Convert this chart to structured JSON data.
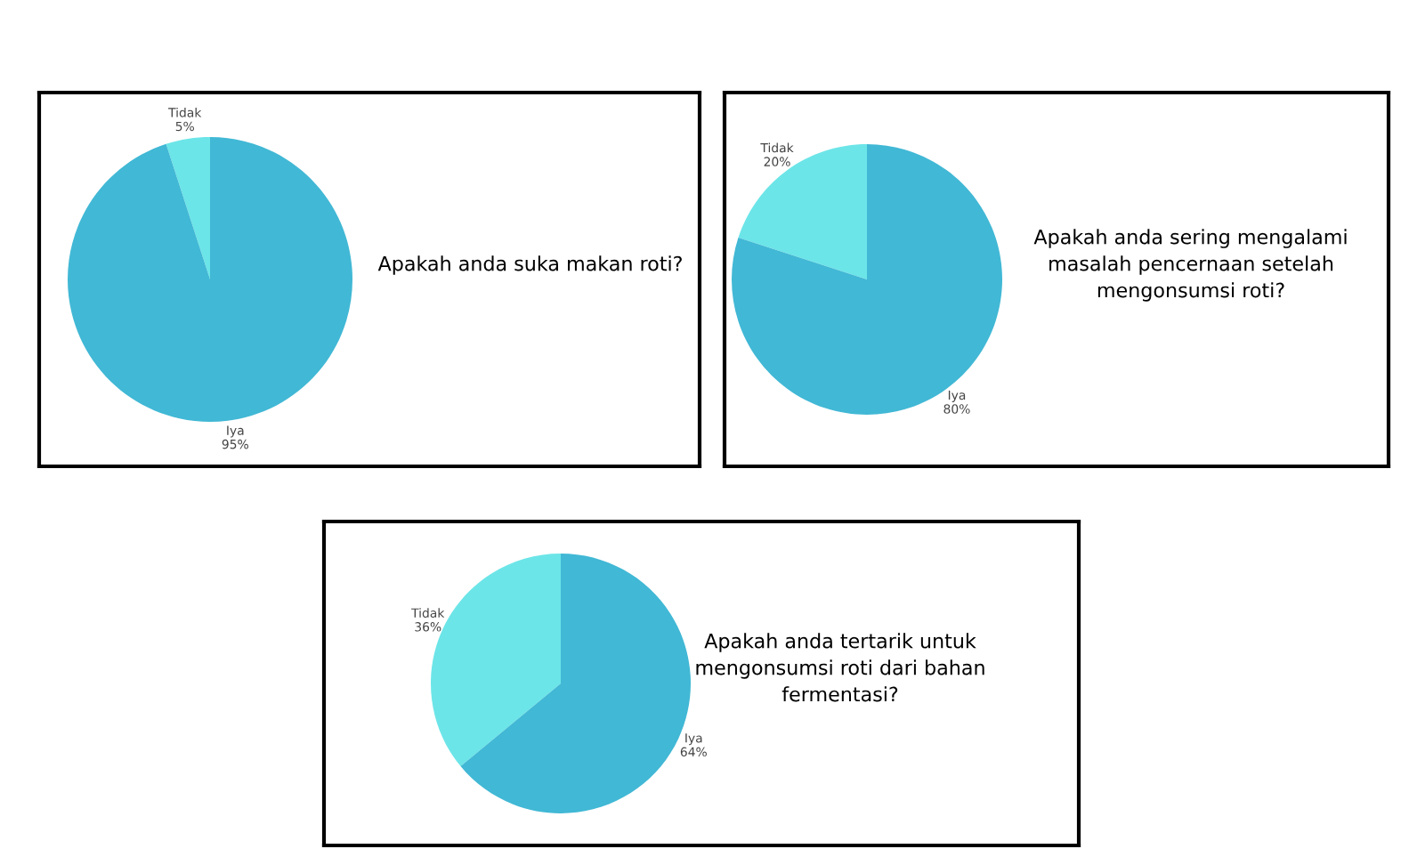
{
  "chart_data": [
    {
      "type": "pie",
      "title": "Apakah anda suka makan roti?",
      "categories": [
        "Tidak",
        "Iya"
      ],
      "values": [
        5,
        95
      ],
      "colors": [
        "#6ce5e8",
        "#41b8d5"
      ],
      "value_labels": [
        "5%",
        "95%"
      ]
    },
    {
      "type": "pie",
      "title": "Apakah anda sering mengalami\nmasalah pencernaan setelah\nmengonsumsi roti?",
      "categories": [
        "Tidak",
        "Iya"
      ],
      "values": [
        20,
        80
      ],
      "colors": [
        "#6ce5e8",
        "#41b8d5"
      ],
      "value_labels": [
        "20%",
        "80%"
      ]
    },
    {
      "type": "pie",
      "title": "Apakah anda tertarik untuk\nmengonsumsi roti dari bahan\nfermentasi?",
      "categories": [
        "Tidak",
        "Iya"
      ],
      "values": [
        36,
        64
      ],
      "colors": [
        "#6ce5e8",
        "#41b8d5"
      ],
      "value_labels": [
        "36%",
        "64%"
      ]
    }
  ]
}
